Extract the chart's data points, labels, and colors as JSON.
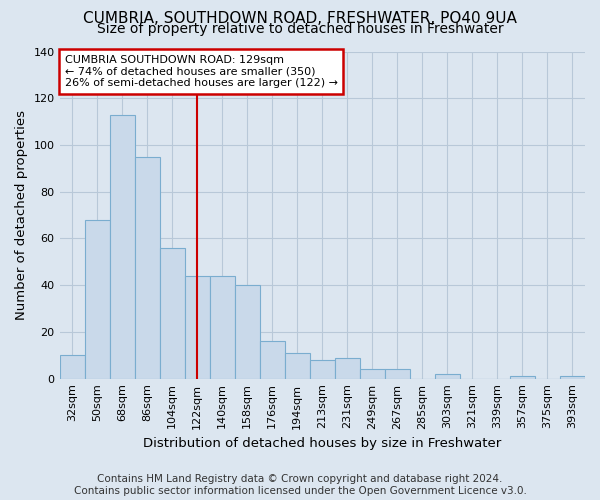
{
  "title": "CUMBRIA, SOUTHDOWN ROAD, FRESHWATER, PO40 9UA",
  "subtitle": "Size of property relative to detached houses in Freshwater",
  "xlabel": "Distribution of detached houses by size in Freshwater",
  "ylabel": "Number of detached properties",
  "categories": [
    "32sqm",
    "50sqm",
    "68sqm",
    "86sqm",
    "104sqm",
    "122sqm",
    "140sqm",
    "158sqm",
    "176sqm",
    "194sqm",
    "213sqm",
    "231sqm",
    "249sqm",
    "267sqm",
    "285sqm",
    "303sqm",
    "321sqm",
    "339sqm",
    "357sqm",
    "375sqm",
    "393sqm"
  ],
  "values": [
    10,
    68,
    113,
    95,
    56,
    44,
    44,
    40,
    16,
    11,
    8,
    9,
    4,
    4,
    0,
    2,
    0,
    0,
    1,
    0,
    1
  ],
  "bar_color": "#c9d9ea",
  "bar_edge_color": "#7aadcf",
  "vline_x": 5.0,
  "annotation_title": "CUMBRIA SOUTHDOWN ROAD: 129sqm",
  "annotation_line1": "← 74% of detached houses are smaller (350)",
  "annotation_line2": "26% of semi-detached houses are larger (122) →",
  "annotation_box_color": "#ffffff",
  "annotation_box_edge_color": "#cc0000",
  "vline_color": "#cc0000",
  "ylim": [
    0,
    140
  ],
  "yticks": [
    0,
    20,
    40,
    60,
    80,
    100,
    120,
    140
  ],
  "footer_line1": "Contains HM Land Registry data © Crown copyright and database right 2024.",
  "footer_line2": "Contains public sector information licensed under the Open Government Licence v3.0.",
  "background_color": "#dce6f0",
  "plot_background_color": "#dce6f0",
  "grid_color": "#b8c8d8",
  "title_fontsize": 11,
  "subtitle_fontsize": 10,
  "axis_label_fontsize": 9.5,
  "tick_fontsize": 8,
  "footer_fontsize": 7.5
}
